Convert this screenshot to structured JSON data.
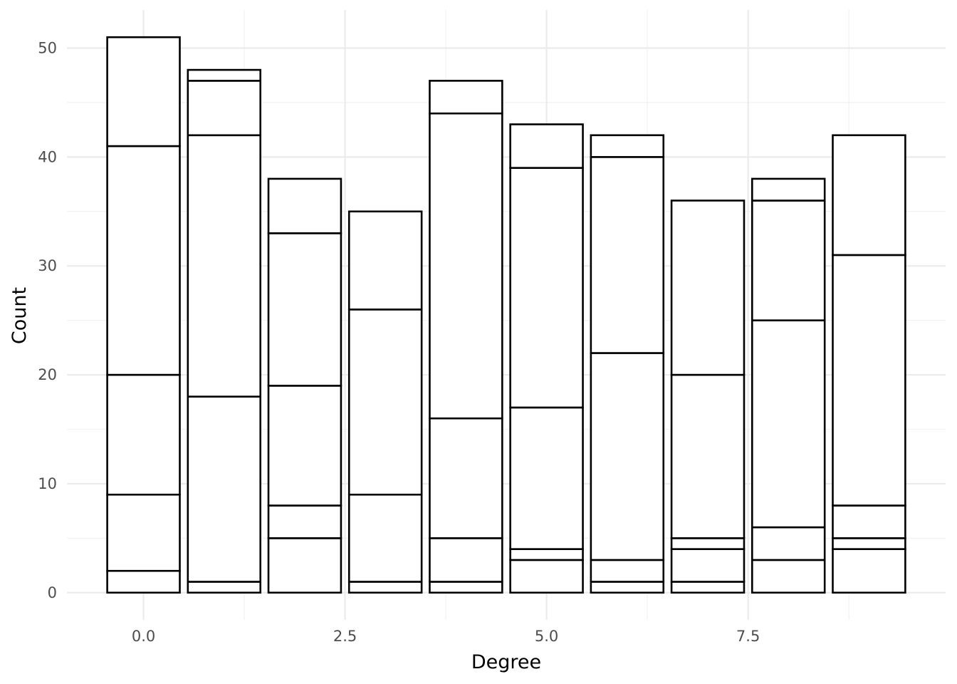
{
  "chart_data": {
    "type": "bar",
    "stacked": true,
    "xlabel": "Degree",
    "ylabel": "Count",
    "xlim": [
      -0.95,
      9.95
    ],
    "ylim": [
      -2.5,
      53.5
    ],
    "x_ticks": [
      0.0,
      2.5,
      5.0,
      7.5
    ],
    "x_tick_labels": [
      "0.0",
      "2.5",
      "5.0",
      "7.5"
    ],
    "y_ticks": [
      0,
      10,
      20,
      30,
      40,
      50
    ],
    "y_tick_labels": [
      "0",
      "10",
      "20",
      "30",
      "40",
      "50"
    ],
    "grid": true,
    "bar_fill": "#ffffff",
    "bar_outline": "#000000",
    "grid_color": "#ebebeb",
    "categories": [
      0,
      1,
      2,
      3,
      4,
      5,
      6,
      7,
      8,
      9
    ],
    "totals": [
      51,
      48,
      38,
      35,
      47,
      43,
      42,
      36,
      38,
      42
    ],
    "stack_boundaries": [
      [
        2,
        9,
        20,
        41,
        51
      ],
      [
        1,
        18,
        42,
        47,
        48
      ],
      [
        5,
        8,
        19,
        33,
        38
      ],
      [
        1,
        9,
        26,
        35
      ],
      [
        1,
        5,
        16,
        44,
        47
      ],
      [
        3,
        4,
        17,
        39,
        43
      ],
      [
        1,
        3,
        22,
        40,
        42
      ],
      [
        1,
        4,
        5,
        20,
        36
      ],
      [
        3,
        6,
        25,
        36,
        38
      ],
      [
        4,
        5,
        8,
        31,
        42
      ]
    ]
  }
}
